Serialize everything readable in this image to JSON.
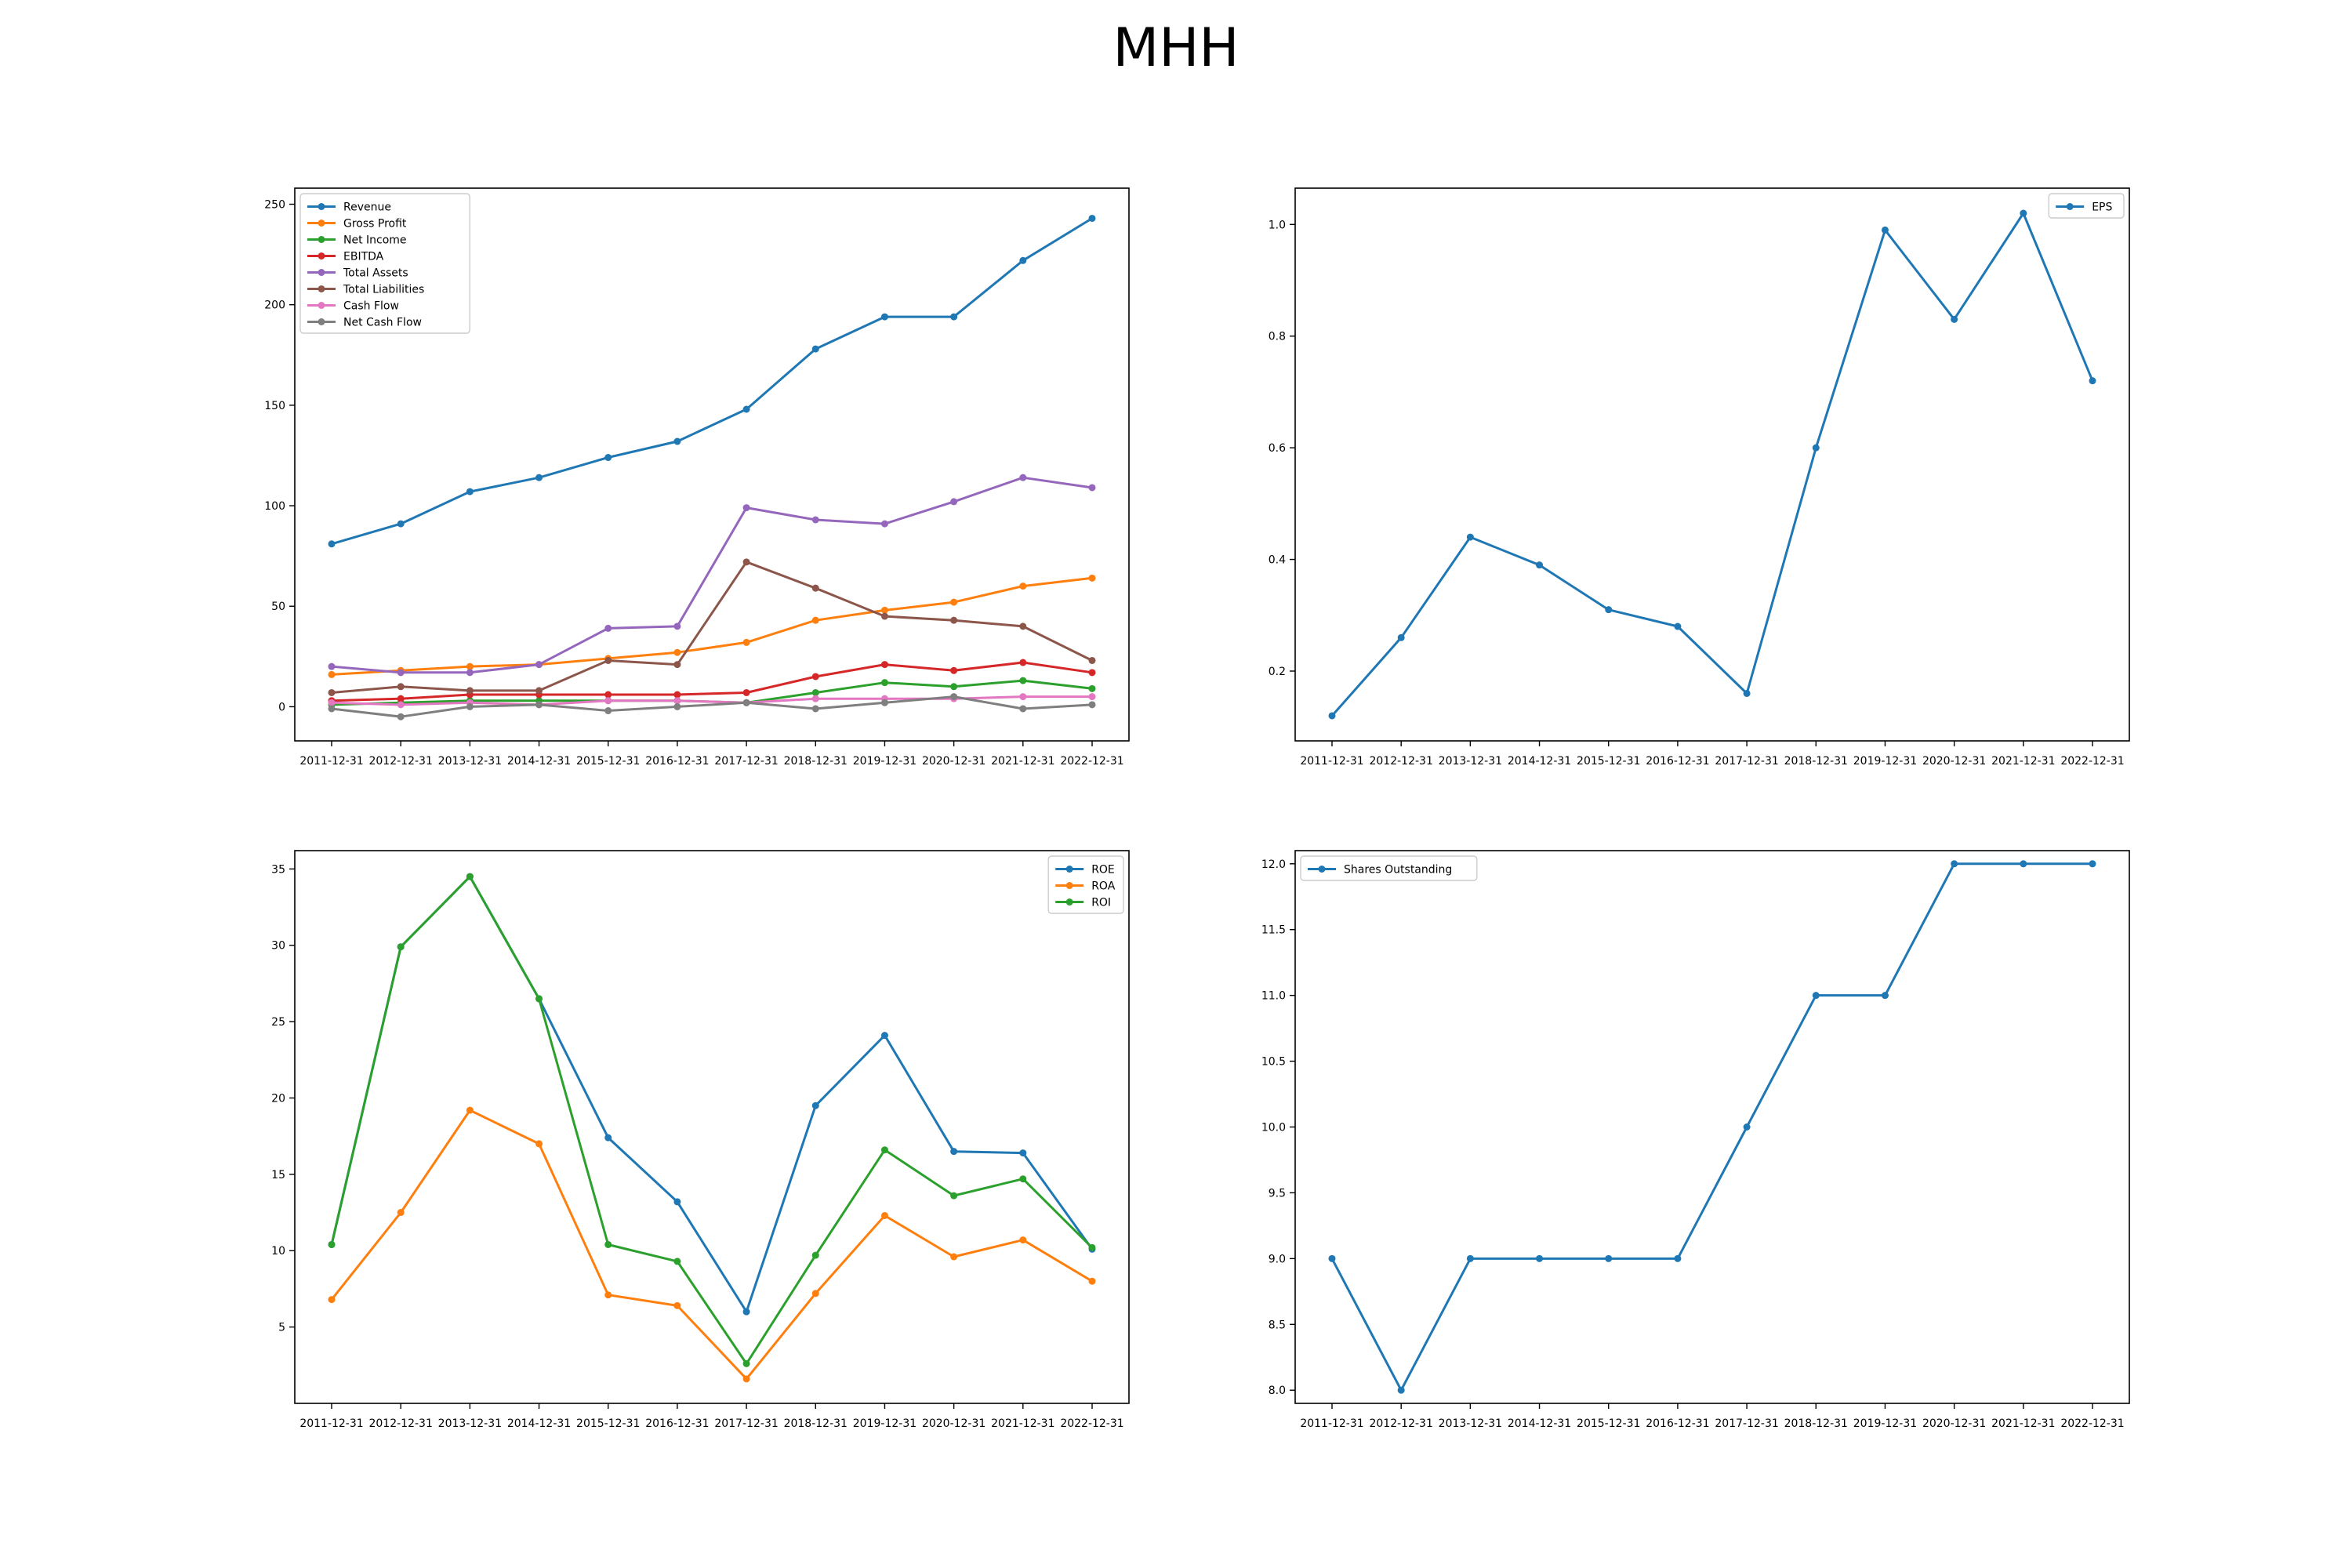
{
  "figure_title": "MHH",
  "colors": {
    "blue": "#1f77b4",
    "orange": "#ff7f0e",
    "green": "#2ca02c",
    "red": "#d62728",
    "purple": "#9467bd",
    "brown": "#8c564b",
    "pink": "#e377c2",
    "gray": "#7f7f7f"
  },
  "chart_data": [
    {
      "type": "line",
      "x": [
        "2011-12-31",
        "2012-12-31",
        "2013-12-31",
        "2014-12-31",
        "2015-12-31",
        "2016-12-31",
        "2017-12-31",
        "2018-12-31",
        "2019-12-31",
        "2020-12-31",
        "2021-12-31",
        "2022-12-31"
      ],
      "ylim": [
        -17,
        258
      ],
      "yticks": [
        0,
        50,
        100,
        150,
        200,
        250
      ],
      "ytick_labels": [
        "0",
        "50",
        "100",
        "150",
        "200",
        "250"
      ],
      "legend": "top-left",
      "grid": false,
      "series": [
        {
          "name": "Revenue",
          "color": "#1f77b4",
          "values": [
            81,
            91,
            107,
            114,
            124,
            132,
            148,
            178,
            194,
            194,
            222,
            243
          ]
        },
        {
          "name": "Gross Profit",
          "color": "#ff7f0e",
          "values": [
            16,
            18,
            20,
            21,
            24,
            27,
            32,
            43,
            48,
            52,
            60,
            64
          ]
        },
        {
          "name": "Net Income",
          "color": "#2ca02c",
          "values": [
            1,
            2,
            3,
            3,
            3,
            3,
            2,
            7,
            12,
            10,
            13,
            9
          ]
        },
        {
          "name": "EBITDA",
          "color": "#d62728",
          "values": [
            3,
            4,
            6,
            6,
            6,
            6,
            7,
            15,
            21,
            18,
            22,
            17
          ]
        },
        {
          "name": "Total Assets",
          "color": "#9467bd",
          "values": [
            20,
            17,
            17,
            21,
            39,
            40,
            99,
            93,
            91,
            102,
            114,
            109
          ]
        },
        {
          "name": "Total Liabilities",
          "color": "#8c564b",
          "values": [
            7,
            10,
            8,
            8,
            23,
            21,
            72,
            59,
            45,
            43,
            40,
            23
          ]
        },
        {
          "name": "Cash Flow",
          "color": "#e377c2",
          "values": [
            2,
            1,
            2,
            1,
            3,
            3,
            2,
            4,
            4,
            4,
            5,
            5
          ]
        },
        {
          "name": "Net Cash Flow",
          "color": "#7f7f7f",
          "values": [
            -1,
            -5,
            0,
            1,
            -2,
            0,
            2,
            -1,
            2,
            5,
            -1,
            1
          ]
        }
      ]
    },
    {
      "type": "line",
      "x": [
        "2011-12-31",
        "2012-12-31",
        "2013-12-31",
        "2014-12-31",
        "2015-12-31",
        "2016-12-31",
        "2017-12-31",
        "2018-12-31",
        "2019-12-31",
        "2020-12-31",
        "2021-12-31",
        "2022-12-31"
      ],
      "ylim": [
        0.075,
        1.065
      ],
      "yticks": [
        0.2,
        0.4,
        0.6,
        0.8,
        1.0
      ],
      "ytick_labels": [
        "0.2",
        "0.4",
        "0.6",
        "0.8",
        "1.0"
      ],
      "legend": "top-right",
      "grid": false,
      "series": [
        {
          "name": "EPS",
          "color": "#1f77b4",
          "values": [
            0.12,
            0.26,
            0.44,
            0.39,
            0.31,
            0.28,
            0.16,
            0.6,
            0.99,
            0.83,
            1.02,
            0.72
          ]
        }
      ]
    },
    {
      "type": "line",
      "x": [
        "2011-12-31",
        "2012-12-31",
        "2013-12-31",
        "2014-12-31",
        "2015-12-31",
        "2016-12-31",
        "2017-12-31",
        "2018-12-31",
        "2019-12-31",
        "2020-12-31",
        "2021-12-31",
        "2022-12-31"
      ],
      "ylim": [
        0.0,
        36.2
      ],
      "yticks": [
        5,
        10,
        15,
        20,
        25,
        30,
        35
      ],
      "ytick_labels": [
        "5",
        "10",
        "15",
        "20",
        "25",
        "30",
        "35"
      ],
      "legend": "top-right",
      "grid": false,
      "series": [
        {
          "name": "ROE",
          "color": "#1f77b4",
          "values": [
            10.4,
            29.9,
            34.5,
            26.5,
            17.4,
            13.2,
            6.0,
            19.5,
            24.1,
            16.5,
            16.4,
            10.1
          ]
        },
        {
          "name": "ROA",
          "color": "#ff7f0e",
          "values": [
            6.8,
            12.5,
            19.2,
            17.0,
            7.1,
            6.4,
            1.6,
            7.2,
            12.3,
            9.6,
            10.7,
            8.0
          ]
        },
        {
          "name": "ROI",
          "color": "#2ca02c",
          "values": [
            10.4,
            29.9,
            34.5,
            26.5,
            10.4,
            9.3,
            2.6,
            9.7,
            16.6,
            13.6,
            14.7,
            10.2
          ]
        }
      ]
    },
    {
      "type": "line",
      "x": [
        "2011-12-31",
        "2012-12-31",
        "2013-12-31",
        "2014-12-31",
        "2015-12-31",
        "2016-12-31",
        "2017-12-31",
        "2018-12-31",
        "2019-12-31",
        "2020-12-31",
        "2021-12-31",
        "2022-12-31"
      ],
      "ylim": [
        7.9,
        12.1
      ],
      "yticks": [
        8.0,
        8.5,
        9.0,
        9.5,
        10.0,
        10.5,
        11.0,
        11.5,
        12.0
      ],
      "ytick_labels": [
        "8.0",
        "8.5",
        "9.0",
        "9.5",
        "10.0",
        "10.5",
        "11.0",
        "11.5",
        "12.0"
      ],
      "legend": "top-left",
      "grid": false,
      "series": [
        {
          "name": "Shares Outstanding",
          "color": "#1f77b4",
          "values": [
            9,
            8,
            9,
            9,
            9,
            9,
            10,
            11,
            11,
            12,
            12,
            12
          ]
        }
      ]
    }
  ]
}
